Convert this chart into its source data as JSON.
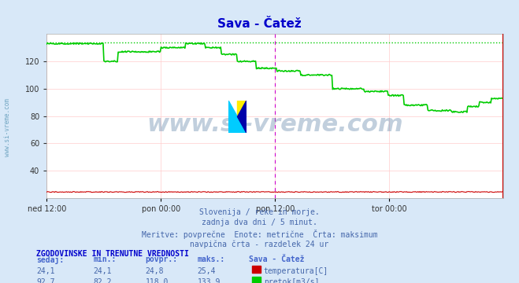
{
  "title": "Sava - Čatež",
  "title_color": "#0000cc",
  "bg_color": "#d8e8f8",
  "plot_bg_color": "#ffffff",
  "grid_color_h": "#ffcccc",
  "grid_color_v": "#ffcccc",
  "xlabel_ticks": [
    "ned 12:00",
    "pon 00:00",
    "pon 12:00",
    "tor 00:00"
  ],
  "xlabel_tick_positions": [
    0.0,
    0.25,
    0.5,
    0.75
  ],
  "ylim": [
    20,
    140
  ],
  "yticks": [
    40,
    60,
    80,
    100,
    120
  ],
  "temp_color": "#cc0000",
  "flow_color": "#00cc00",
  "max_line_color": "#00cc00",
  "max_value": 133.9,
  "vline_color": "#cc00cc",
  "vline_pos": 0.5,
  "watermark": "www.si-vreme.com",
  "watermark_color": "#6688aa",
  "footer_lines": [
    "Slovenija / reke in morje.",
    "zadnja dva dni / 5 minut.",
    "Meritve: povprečne  Enote: metrične  Črta: maksimum",
    "navpična črta - razdelek 24 ur"
  ],
  "footer_color": "#4466aa",
  "table_header": "ZGODOVINSKE IN TRENUTNE VREDNOSTI",
  "table_header_color": "#0000cc",
  "table_cols": [
    "sedaj:",
    "min.:",
    "povpr.:",
    "maks.:",
    "Sava - Čatež"
  ],
  "table_col_color": "#4466cc",
  "temp_row": [
    "24,1",
    "24,1",
    "24,8",
    "25,4"
  ],
  "flow_row": [
    "92,7",
    "82,2",
    "118,0",
    "133,9"
  ],
  "row_color": "#4466aa",
  "legend_temp": "temperatura[C]",
  "legend_flow": "pretok[m3/s]",
  "legend_color": "#4466aa",
  "arrow_color": "#cc0000",
  "left_label_color": "#4488aa"
}
